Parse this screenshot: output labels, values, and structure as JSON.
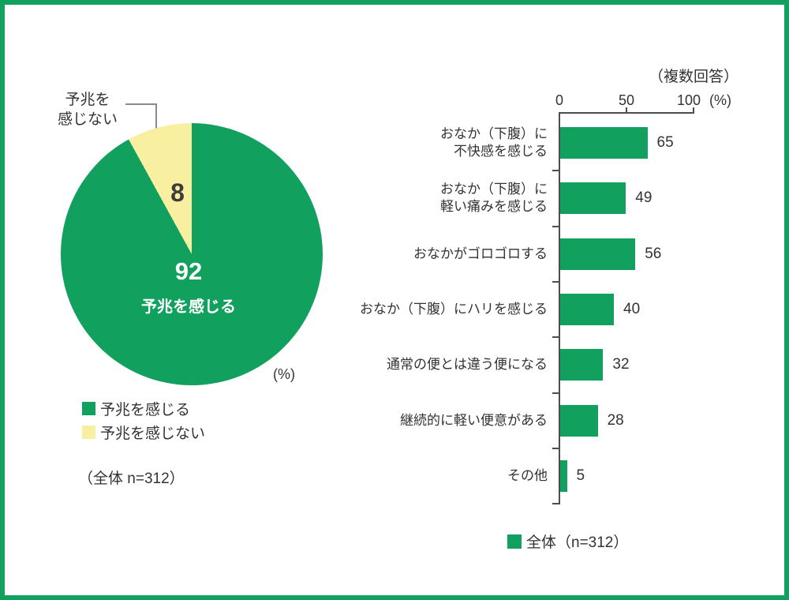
{
  "ui": {
    "colors": {
      "green": "#12a05f",
      "yellow": "#f8f0a0",
      "text": "#333333",
      "axis": "#4d4d4d",
      "callout_line": "#8a8a8a",
      "frame_border": "#12a05f"
    },
    "pie": {
      "unit": "(%)",
      "note": "（全体 n=312）",
      "callout_lines": [
        "予兆を",
        "感じない"
      ]
    },
    "bar": {
      "note": "（複数回答）",
      "tick_labels": [
        "0",
        "50",
        "100"
      ],
      "unit_label": "(%)",
      "legend": "全体（n=312）"
    }
  },
  "chart_data": [
    {
      "type": "pie",
      "title": "",
      "labels": [
        "予兆を感じる",
        "予兆を感じない"
      ],
      "values": [
        92,
        8
      ],
      "colors": [
        "#12a05f",
        "#f8f0a0"
      ],
      "unit": "(%)",
      "sample_note": "（全体 n=312）",
      "start_at_top": true,
      "clockwise": true,
      "legend_position": "bottom-left"
    },
    {
      "type": "bar",
      "orientation": "horizontal",
      "title": "（複数回答）",
      "categories": [
        "おなか（下腹）に不快感を感じる",
        "おなか（下腹）に軽い痛みを感じる",
        "おなかがゴロゴロする",
        "おなか（下腹）にハリを感じる",
        "通常の便とは違う便になる",
        "継続的に軽い便意がある",
        "その他"
      ],
      "categories_lines": [
        [
          "おなか（下腹）に",
          "不快感を感じる"
        ],
        [
          "おなか（下腹）に",
          "軽い痛みを感じる"
        ],
        [
          "おなかがゴロゴロする"
        ],
        [
          "おなか（下腹）にハリを感じる"
        ],
        [
          "通常の便とは違う便になる"
        ],
        [
          "継続的に軽い便意がある"
        ],
        [
          "その他"
        ]
      ],
      "values": [
        65,
        49,
        56,
        40,
        32,
        28,
        5
      ],
      "xlim": [
        0,
        100
      ],
      "xticks": [
        0,
        50,
        100
      ],
      "unit": "(%)",
      "legend": [
        "全体（n=312）"
      ],
      "series_color": "#12a05f",
      "grid": false
    }
  ]
}
